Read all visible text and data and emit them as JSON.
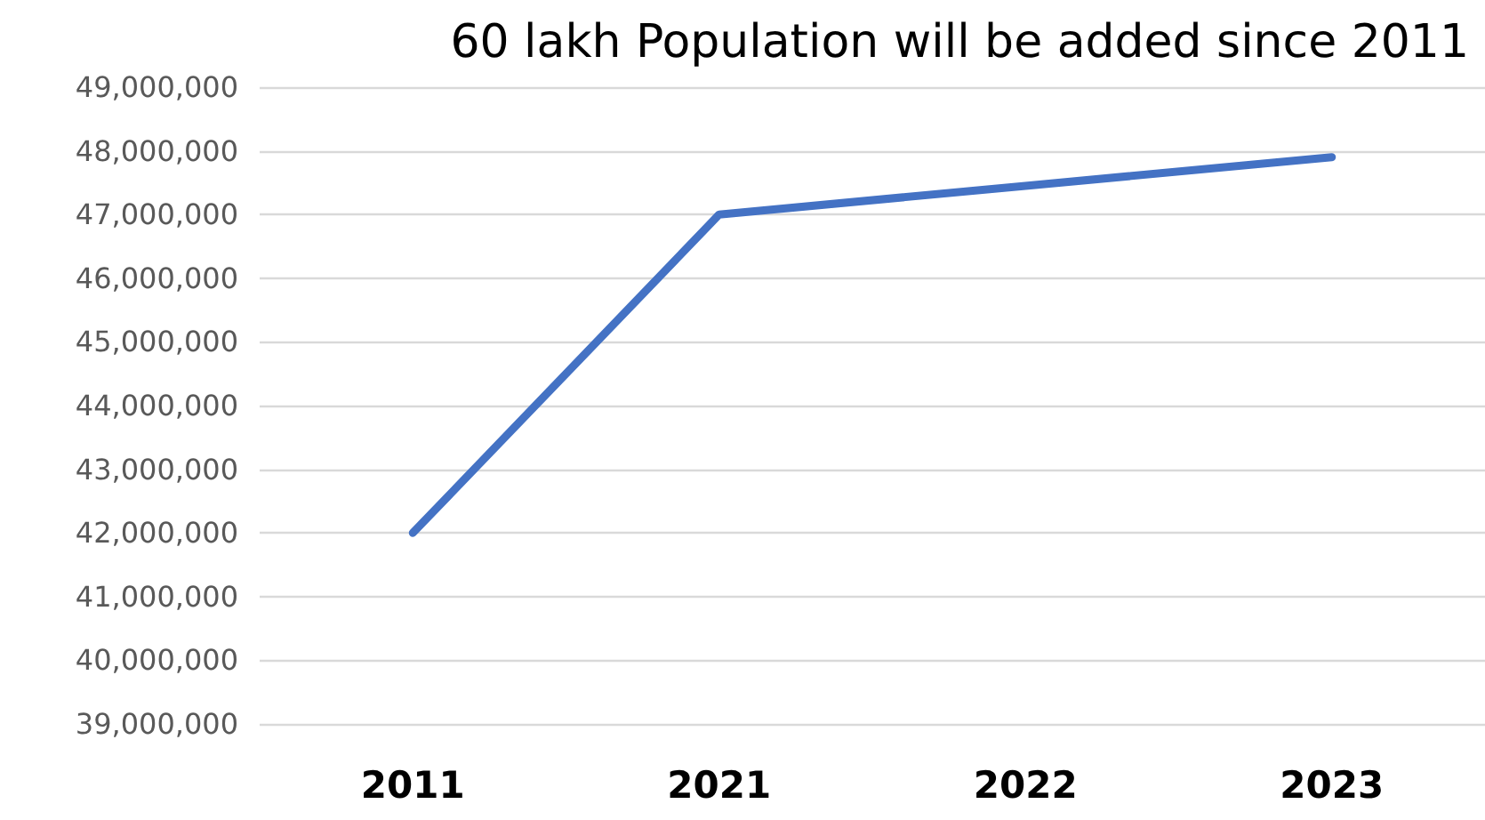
{
  "chart_data": {
    "type": "line",
    "title": "60 lakh Population will be added since 2011",
    "categories": [
      "2011",
      "2021",
      "2022",
      "2023"
    ],
    "series": [
      {
        "color": "#4472c4",
        "values": [
          42000000,
          47000000,
          47450000,
          47900000
        ]
      }
    ],
    "ylim": [
      39000000,
      49000000
    ],
    "yticks": [
      {
        "value": 39000000,
        "label": "39,000,000"
      },
      {
        "value": 40000000,
        "label": "40,000,000"
      },
      {
        "value": 41000000,
        "label": "41,000,000"
      },
      {
        "value": 42000000,
        "label": "42,000,000"
      },
      {
        "value": 43000000,
        "label": "43,000,000"
      },
      {
        "value": 44000000,
        "label": "44,000,000"
      },
      {
        "value": 45000000,
        "label": "45,000,000"
      },
      {
        "value": 46000000,
        "label": "46,000,000"
      },
      {
        "value": 47000000,
        "label": "47,000,000"
      },
      {
        "value": 48000000,
        "label": "48,000,000"
      },
      {
        "value": 49000000,
        "label": "49,000,000"
      }
    ],
    "grid": "y",
    "marker": "none",
    "line_style": "solid"
  }
}
